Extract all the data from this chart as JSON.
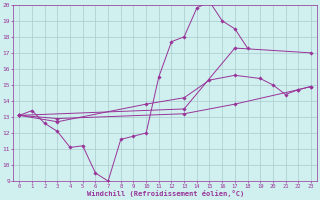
{
  "background_color": "#cff0ee",
  "grid_color": "#aacccc",
  "line_color": "#993399",
  "xlabel": "Windchill (Refroidissement éolien,°C)",
  "xlim": [
    -0.5,
    23.5
  ],
  "ylim": [
    9,
    20
  ],
  "xticks": [
    0,
    1,
    2,
    3,
    4,
    5,
    6,
    7,
    8,
    9,
    10,
    11,
    12,
    13,
    14,
    15,
    16,
    17,
    18,
    19,
    20,
    21,
    22,
    23
  ],
  "yticks": [
    9,
    10,
    11,
    12,
    13,
    14,
    15,
    16,
    17,
    18,
    19,
    20
  ],
  "series": [
    {
      "x": [
        0,
        1,
        2,
        3,
        4,
        5,
        6,
        7,
        8,
        9,
        10,
        11,
        12,
        13,
        14,
        15,
        16,
        17,
        18
      ],
      "y": [
        13.1,
        13.4,
        12.6,
        12.1,
        11.1,
        11.2,
        9.5,
        9.0,
        11.6,
        11.8,
        12.0,
        15.5,
        17.7,
        18.0,
        19.8,
        20.2,
        19.0,
        18.5,
        17.3
      ]
    },
    {
      "x": [
        0,
        13,
        17,
        23
      ],
      "y": [
        13.1,
        13.5,
        17.3,
        17.0
      ]
    },
    {
      "x": [
        0,
        3,
        10,
        13,
        15,
        17,
        19,
        20,
        21,
        22,
        23
      ],
      "y": [
        13.1,
        12.7,
        13.8,
        14.2,
        15.3,
        15.6,
        15.4,
        15.0,
        14.4,
        14.7,
        14.9
      ]
    },
    {
      "x": [
        0,
        3,
        13,
        17,
        22,
        23
      ],
      "y": [
        13.1,
        12.9,
        13.2,
        13.8,
        14.7,
        14.9
      ]
    }
  ]
}
